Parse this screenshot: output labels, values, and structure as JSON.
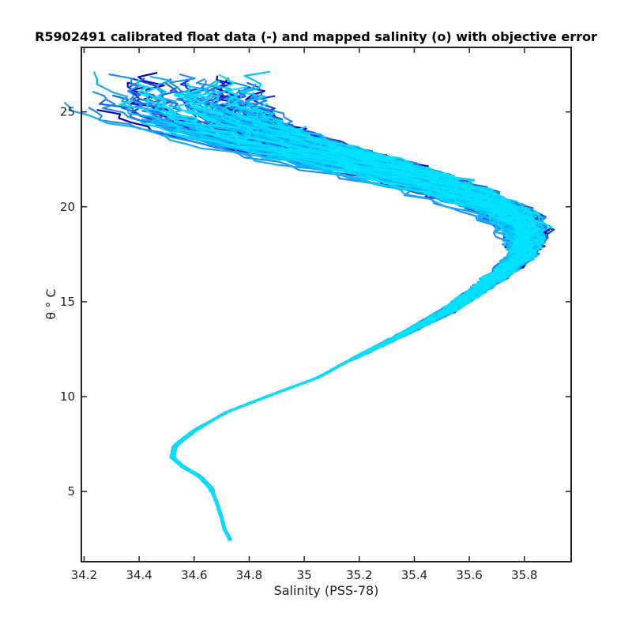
{
  "chart_data": {
    "type": "line",
    "title": "R5902491 calibrated float data (-) and mapped salinity (o) with objective error",
    "xlabel": "Salinity (PSS-78)",
    "ylabel": "θ ° C",
    "xlim": [
      34.19,
      35.97
    ],
    "ylim": [
      1.3,
      28.4
    ],
    "x_ticks": [
      34.2,
      34.4,
      34.6,
      34.8,
      35.0,
      35.2,
      35.4,
      35.6,
      35.8
    ],
    "x_tick_labels": [
      "34.2",
      "34.4",
      "34.6",
      "34.8",
      "35",
      "35.2",
      "35.4",
      "35.6",
      "35.8"
    ],
    "y_ticks": [
      5,
      10,
      15,
      20,
      25
    ],
    "y_tick_labels": [
      "5",
      "10",
      "15",
      "20",
      "25"
    ],
    "grid": false,
    "legend": "none",
    "colormap": [
      "#0000c8",
      "#0a3cdc",
      "#1464f0",
      "#1e8cff",
      "#14aaff",
      "#00c8ff",
      "#00e0ff"
    ],
    "n_profiles": 140,
    "base_profile": {
      "salinity": [
        34.73,
        34.71,
        34.7,
        34.68,
        34.66,
        34.62,
        34.56,
        34.52,
        34.53,
        34.6,
        34.72,
        34.9,
        35.05,
        35.15,
        35.32,
        35.52,
        35.67,
        35.8,
        35.82,
        35.76,
        35.6,
        35.4,
        35.15,
        34.95,
        34.8,
        34.7
      ],
      "theta": [
        2.5,
        3.0,
        3.6,
        4.5,
        5.2,
        5.8,
        6.3,
        6.8,
        7.4,
        8.2,
        9.2,
        10.2,
        11.0,
        11.8,
        13.0,
        14.5,
        16.0,
        17.5,
        18.8,
        19.8,
        20.8,
        21.8,
        22.8,
        23.6,
        24.4,
        25.3
      ]
    },
    "upper_spread": {
      "theta_start": 12.0,
      "salinity_range": [
        -0.55,
        0.12
      ],
      "max_theta_range": [
        23.0,
        27.2
      ]
    },
    "example_endpoints": [
      {
        "salinity": 34.29,
        "theta": 27.0
      },
      {
        "salinity": 34.37,
        "theta": 25.0
      },
      {
        "salinity": 34.93,
        "theta": 27.1
      },
      {
        "salinity": 35.84,
        "theta": 18.7
      },
      {
        "salinity": 34.73,
        "theta": 2.4
      }
    ]
  }
}
